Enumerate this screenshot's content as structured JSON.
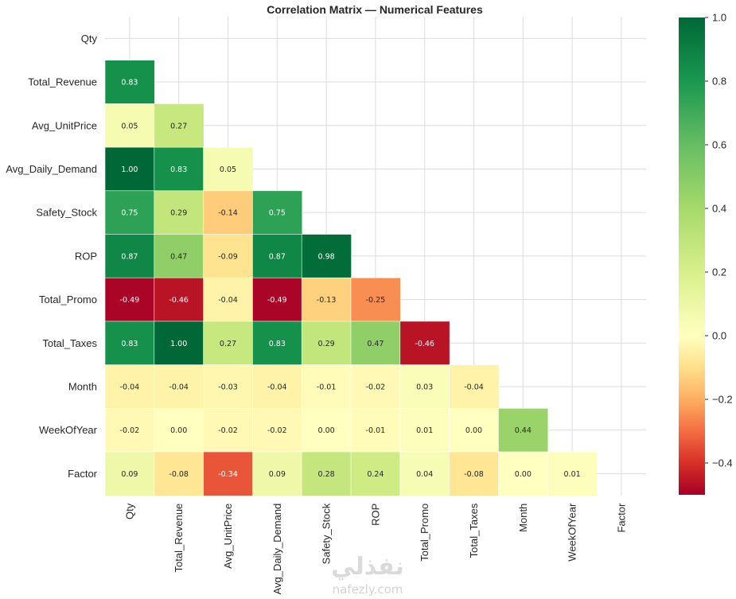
{
  "chart_data": {
    "type": "heatmap",
    "title": "Correlation Matrix — Numerical Features",
    "features": [
      "Qty",
      "Total_Revenue",
      "Avg_UnitPrice",
      "Avg_Daily_Demand",
      "Safety_Stock",
      "ROP",
      "Total_Promo",
      "Total_Taxes",
      "Month",
      "WeekOfYear",
      "Factor"
    ],
    "mask": "upper-triangle-including-diagonal",
    "rows": [
      {
        "label": "Qty",
        "values": []
      },
      {
        "label": "Total_Revenue",
        "values": [
          0.83
        ]
      },
      {
        "label": "Avg_UnitPrice",
        "values": [
          0.05,
          0.27
        ]
      },
      {
        "label": "Avg_Daily_Demand",
        "values": [
          1.0,
          0.83,
          0.05
        ]
      },
      {
        "label": "Safety_Stock",
        "values": [
          0.75,
          0.29,
          -0.14,
          0.75
        ]
      },
      {
        "label": "ROP",
        "values": [
          0.87,
          0.47,
          -0.09,
          0.87,
          0.98
        ]
      },
      {
        "label": "Total_Promo",
        "values": [
          -0.49,
          -0.46,
          -0.04,
          -0.49,
          -0.13,
          -0.25
        ]
      },
      {
        "label": "Total_Taxes",
        "values": [
          0.83,
          1.0,
          0.27,
          0.83,
          0.29,
          0.47,
          -0.46
        ]
      },
      {
        "label": "Month",
        "values": [
          -0.04,
          -0.04,
          -0.03,
          -0.04,
          -0.01,
          -0.02,
          0.03,
          -0.04
        ]
      },
      {
        "label": "WeekOfYear",
        "values": [
          -0.02,
          -0.0,
          -0.02,
          -0.02,
          -0.0,
          -0.01,
          0.01,
          -0.0,
          0.44
        ]
      },
      {
        "label": "Factor",
        "values": [
          0.09,
          -0.08,
          -0.34,
          0.09,
          0.28,
          0.24,
          0.04,
          -0.08,
          0.0,
          0.01
        ]
      }
    ],
    "colorscale": "RdYlGn",
    "vmin": -0.5,
    "vmax": 1.0,
    "colorbar_ticks": [
      "1.0",
      "0.8",
      "0.6",
      "0.4",
      "0.2",
      "0.0",
      "−0.2",
      "−0.4"
    ],
    "grid": true
  },
  "watermark": {
    "arabic": "نفذلي",
    "latin": "nafezly.com"
  }
}
